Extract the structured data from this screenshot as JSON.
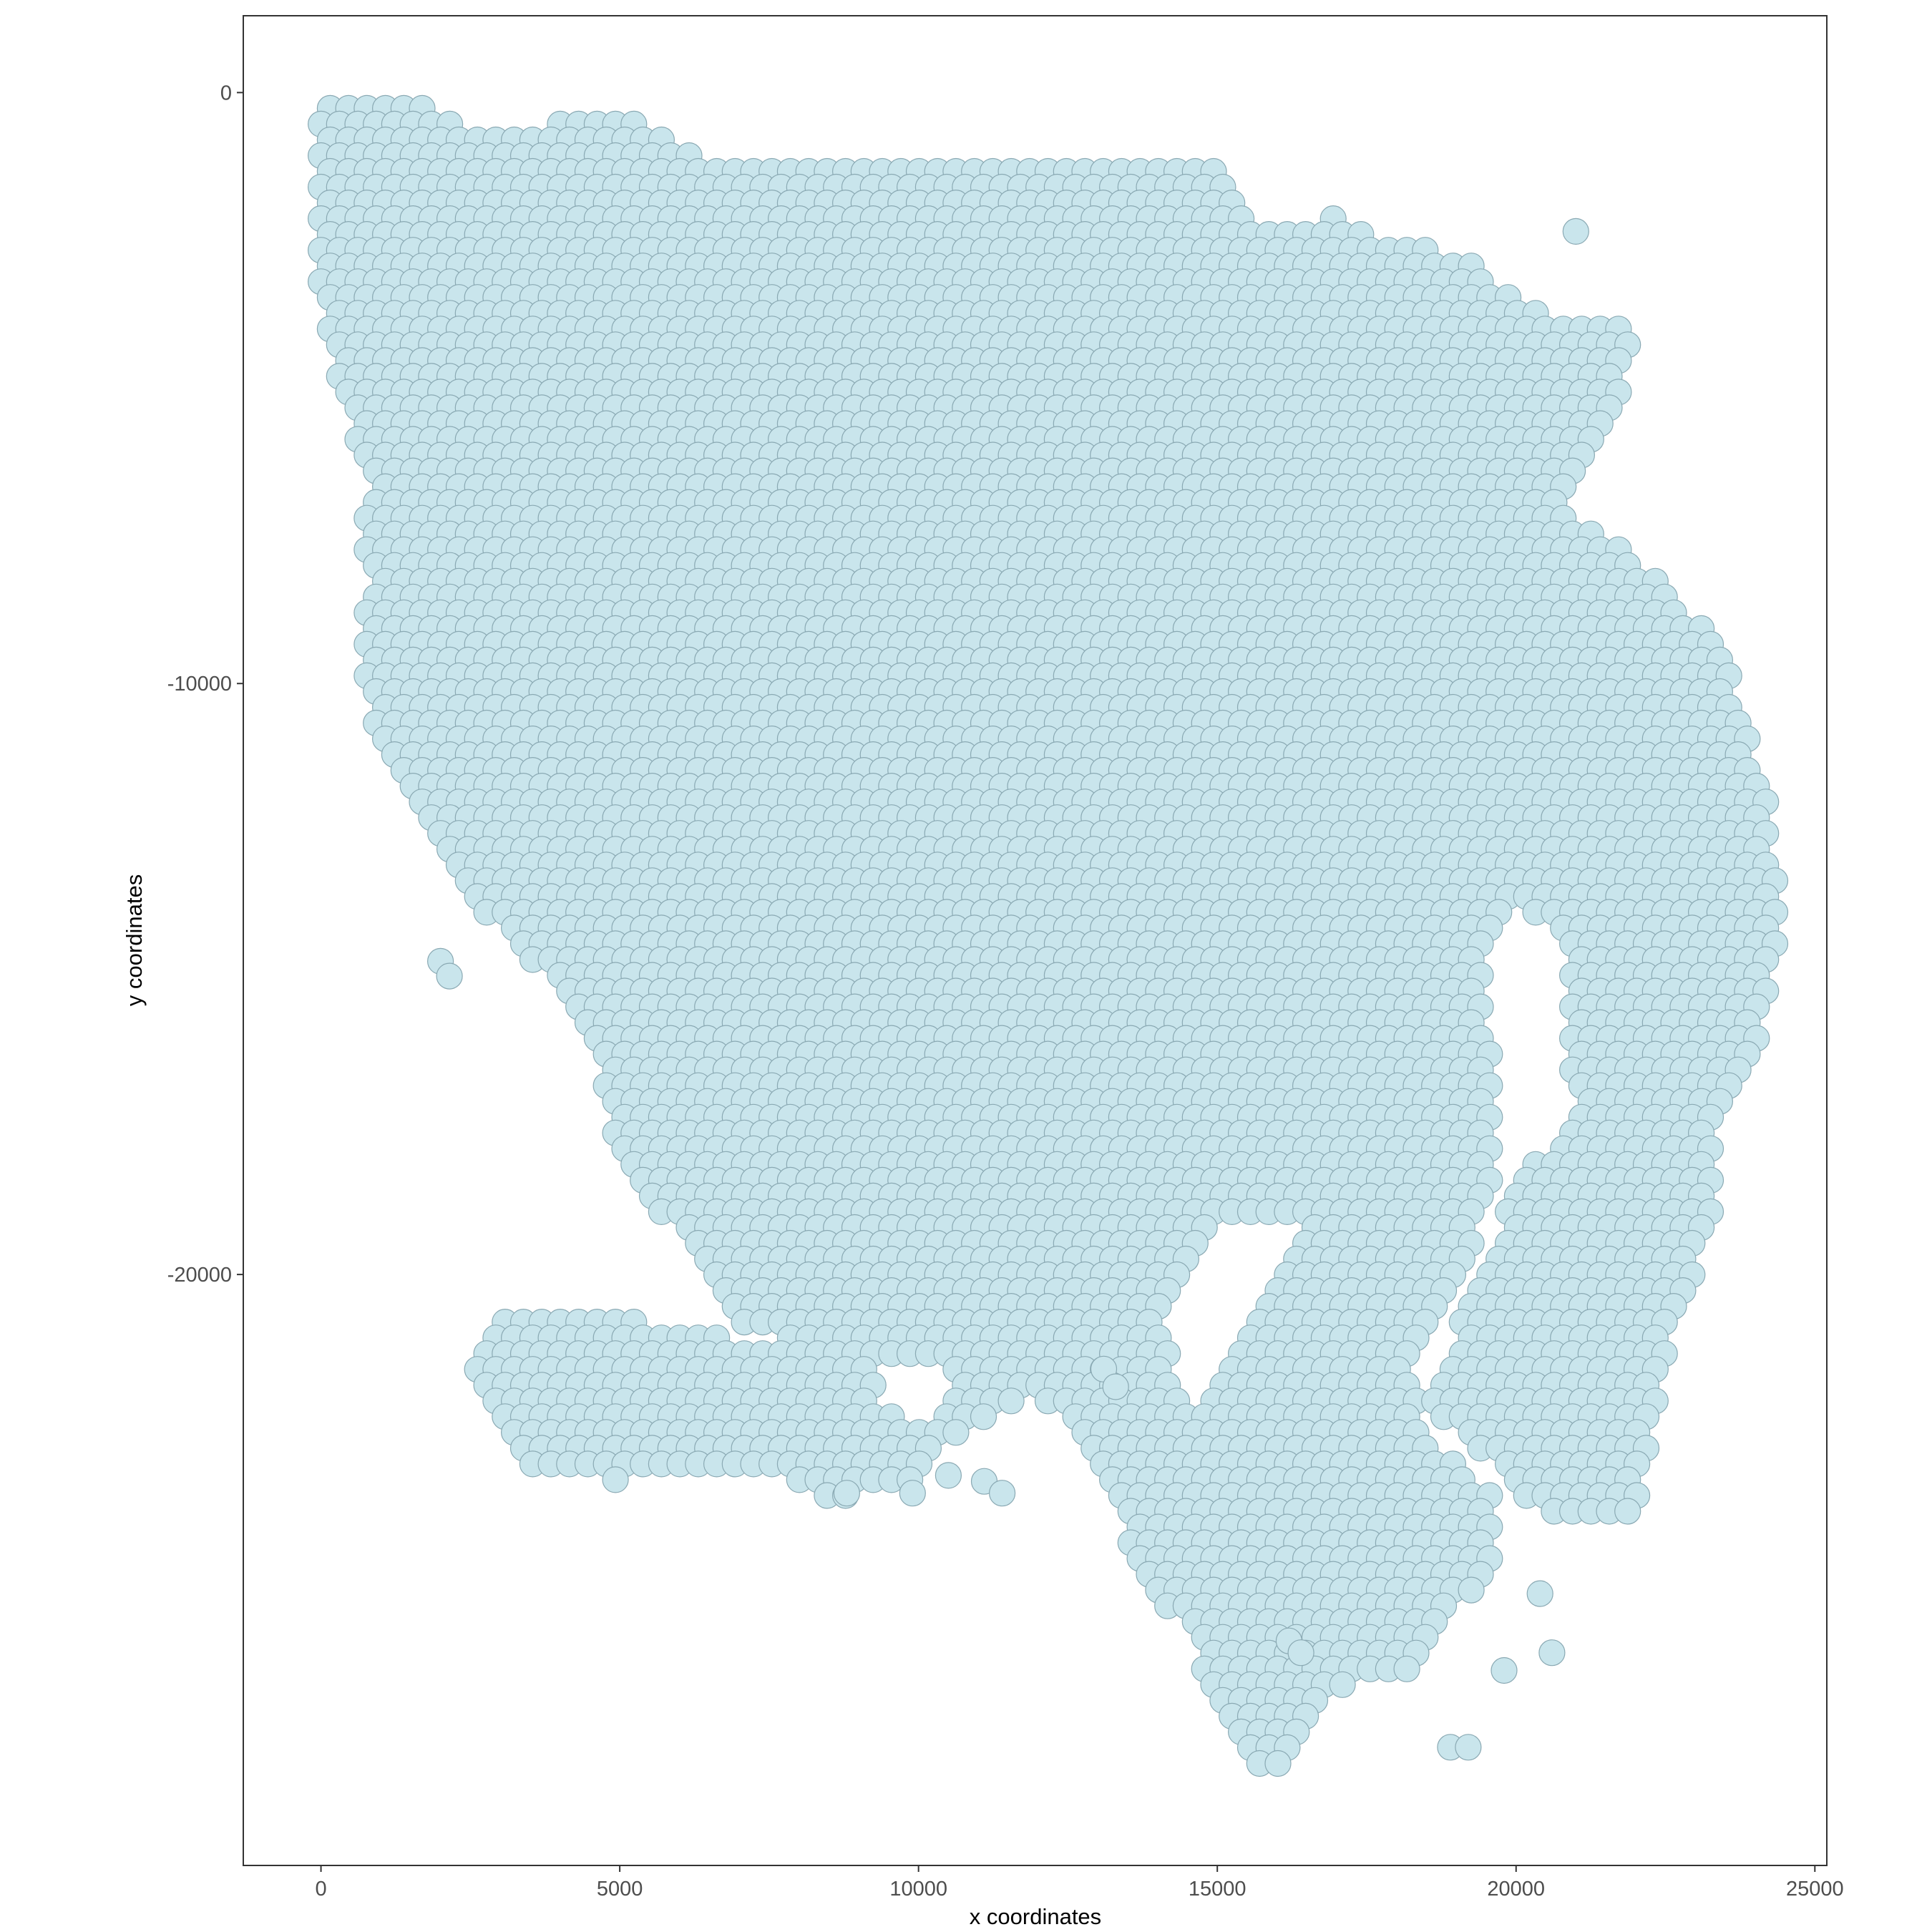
{
  "chart_data": {
    "type": "scatter",
    "title": "",
    "xlabel": "x coordinates",
    "ylabel": "y coordinates",
    "xlim": [
      -1300,
      25200
    ],
    "ylim": [
      -30000,
      1300
    ],
    "x_ticks": [
      0,
      5000,
      10000,
      15000,
      20000,
      25000
    ],
    "x_tick_labels": [
      "0",
      "5000",
      "10000",
      "15000",
      "20000",
      "25000"
    ],
    "y_ticks": [
      0,
      -10000,
      -20000
    ],
    "y_tick_labels": [
      "0",
      "-10000",
      "-20000"
    ],
    "grid": false,
    "legend": "none",
    "marker": {
      "shape": "circle",
      "fill": "#c9e5ec",
      "stroke": "#8aa9b3",
      "spot_spacing": 308
    },
    "colors": {
      "panel_border": "#333333",
      "tick": "#333333"
    },
    "tissue_outline": {
      "main": [
        [
          0,
          0
        ],
        [
          1300,
          0
        ],
        [
          2500,
          -700
        ],
        [
          4000,
          -500
        ],
        [
          5200,
          -500
        ],
        [
          6500,
          -1100
        ],
        [
          8500,
          -1100
        ],
        [
          11000,
          -1300
        ],
        [
          13000,
          -1300
        ],
        [
          14000,
          -1100
        ],
        [
          14800,
          -1200
        ],
        [
          15500,
          -1700
        ],
        [
          15500,
          -2400
        ],
        [
          17000,
          -2100
        ],
        [
          18000,
          -2600
        ],
        [
          19000,
          -2700
        ],
        [
          19500,
          -3000
        ],
        [
          20000,
          -3500
        ],
        [
          21000,
          -3900
        ],
        [
          22000,
          -3900
        ],
        [
          21700,
          -5500
        ],
        [
          21000,
          -6500
        ],
        [
          20800,
          -7000
        ],
        [
          21200,
          -7300
        ],
        [
          22300,
          -8200
        ],
        [
          23400,
          -9300
        ],
        [
          23900,
          -10800
        ],
        [
          24300,
          -12200
        ],
        [
          24400,
          -14200
        ],
        [
          24000,
          -16500
        ],
        [
          23400,
          -17600
        ],
        [
          23400,
          -18900
        ],
        [
          22600,
          -21000
        ],
        [
          22300,
          -22500
        ],
        [
          22000,
          -24000
        ],
        [
          20500,
          -24200
        ],
        [
          20000,
          -23500
        ],
        [
          19500,
          -23000
        ],
        [
          18500,
          -22400
        ],
        [
          19000,
          -21000
        ],
        [
          20000,
          -18500
        ],
        [
          21000,
          -17200
        ],
        [
          20800,
          -15800
        ],
        [
          21000,
          -14600
        ],
        [
          20200,
          -13800
        ],
        [
          19600,
          -14000
        ],
        [
          19500,
          -15500
        ],
        [
          19700,
          -18000
        ],
        [
          19200,
          -19800
        ],
        [
          18300,
          -21500
        ],
        [
          18500,
          -22800
        ],
        [
          19600,
          -23700
        ],
        [
          19600,
          -25000
        ],
        [
          18800,
          -25800
        ],
        [
          18200,
          -27000
        ],
        [
          17600,
          -26800
        ],
        [
          16800,
          -27200
        ],
        [
          16300,
          -28300
        ],
        [
          15600,
          -28500
        ],
        [
          15000,
          -27500
        ],
        [
          14500,
          -26000
        ],
        [
          13500,
          -25000
        ],
        [
          13400,
          -24100
        ],
        [
          12800,
          -22900
        ],
        [
          12000,
          -22000
        ],
        [
          10500,
          -22900
        ],
        [
          9800,
          -23600
        ],
        [
          8600,
          -23800
        ],
        [
          7000,
          -23200
        ],
        [
          5000,
          -23500
        ],
        [
          3300,
          -23200
        ],
        [
          2500,
          -21500
        ],
        [
          3000,
          -20800
        ],
        [
          5500,
          -20800
        ],
        [
          7000,
          -21100
        ],
        [
          8600,
          -21300
        ],
        [
          7000,
          -20900
        ],
        [
          5900,
          -19200
        ],
        [
          5000,
          -18200
        ],
        [
          4600,
          -16000
        ],
        [
          3500,
          -14700
        ],
        [
          2400,
          -13500
        ],
        [
          1600,
          -12300
        ],
        [
          900,
          -11000
        ],
        [
          600,
          -9500
        ],
        [
          800,
          -8500
        ],
        [
          700,
          -7500
        ],
        [
          800,
          -6500
        ],
        [
          500,
          -5500
        ],
        [
          0,
          -3700
        ],
        [
          -100,
          -2000
        ]
      ],
      "holes": [
        [
          [
            14500,
            -19700
          ],
          [
            15000,
            -19000
          ],
          [
            16400,
            -19100
          ],
          [
            15800,
            -20500
          ],
          [
            15300,
            -21500
          ],
          [
            14400,
            -22400
          ],
          [
            14100,
            -21000
          ]
        ],
        [
          [
            9300,
            -21500
          ],
          [
            10300,
            -21400
          ],
          [
            10600,
            -22200
          ],
          [
            9900,
            -22600
          ],
          [
            9400,
            -22200
          ]
        ]
      ]
    },
    "extra_spots": [
      [
        2000,
        -14700
      ],
      [
        2150,
        -14950
      ],
      [
        21000,
        -2350
      ],
      [
        18900,
        -28000
      ],
      [
        19200,
        -28000
      ],
      [
        13100,
        -21600
      ],
      [
        13300,
        -21900
      ],
      [
        9900,
        -23700
      ],
      [
        8800,
        -23700
      ],
      [
        10500,
        -23400
      ],
      [
        11100,
        -23500
      ],
      [
        11400,
        -23700
      ],
      [
        20400,
        -25400
      ],
      [
        20600,
        -26400
      ],
      [
        19800,
        -26700
      ],
      [
        16200,
        -26200
      ],
      [
        16400,
        -26400
      ]
    ]
  }
}
